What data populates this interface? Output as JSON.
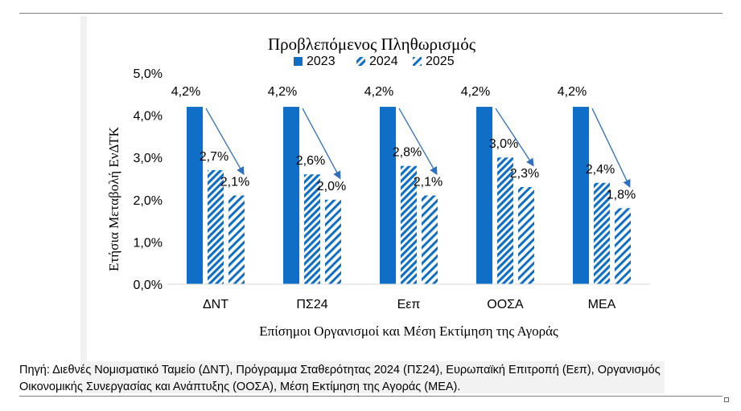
{
  "chart_data": {
    "type": "bar",
    "title": "Προβλεπόμενος Πληθωρισμός",
    "xlabel": "Επίσημοι Οργανισμοί και Μέση Εκτίμηση της Αγοράς",
    "ylabel": "Ετήσια Μεταβολή ΕνΔΤΚ",
    "categories": [
      "ΔΝΤ",
      "ΠΣ24",
      "Εεπ",
      "ΟΟΣΑ",
      "ΜΕΑ"
    ],
    "series": [
      {
        "name": "2023",
        "values": [
          4.2,
          4.2,
          4.2,
          4.2,
          4.2
        ],
        "labels": [
          "4,2%",
          "4,2%",
          "4,2%",
          "4,2%",
          "4,2%"
        ],
        "fill": "solid",
        "color": "#0f6fc6"
      },
      {
        "name": "2024",
        "values": [
          2.7,
          2.6,
          2.8,
          3.0,
          2.4
        ],
        "labels": [
          "2,7%",
          "2,6%",
          "2,8%",
          "3,0%",
          "2,4%"
        ],
        "fill": "dense-diagonal",
        "color": "#0f6fc6"
      },
      {
        "name": "2025",
        "values": [
          2.1,
          2.0,
          2.1,
          2.3,
          1.8
        ],
        "labels": [
          "2,1%",
          "2,0%",
          "2,1%",
          "2,3%",
          "1,8%"
        ],
        "fill": "wide-diagonal",
        "color": "#0f6fc6"
      }
    ],
    "ylim": [
      0,
      5
    ],
    "yticks": [
      0,
      1,
      2,
      3,
      4,
      5
    ],
    "ytick_labels": [
      "0,0%",
      "1,0%",
      "2,0%",
      "3,0%",
      "4,0%",
      "5,0%"
    ],
    "legend_position": "top",
    "grid": false,
    "arrows": "from 2023 bar top toward 2025 bar in each group"
  },
  "source_note": "Πηγή: Διεθνές Νομισματικό Ταμείο (ΔΝΤ), Πρόγραμμα Σταθερότητας 2024 (ΠΣ24), Ευρωπαϊκή Επιτροπή (Εεπ), Οργανισμός Οικονομικής Συνεργασίας και Ανάπτυξης (ΟΟΣΑ), Μέση Εκτίμηση της Αγοράς (ΜΕΑ)."
}
